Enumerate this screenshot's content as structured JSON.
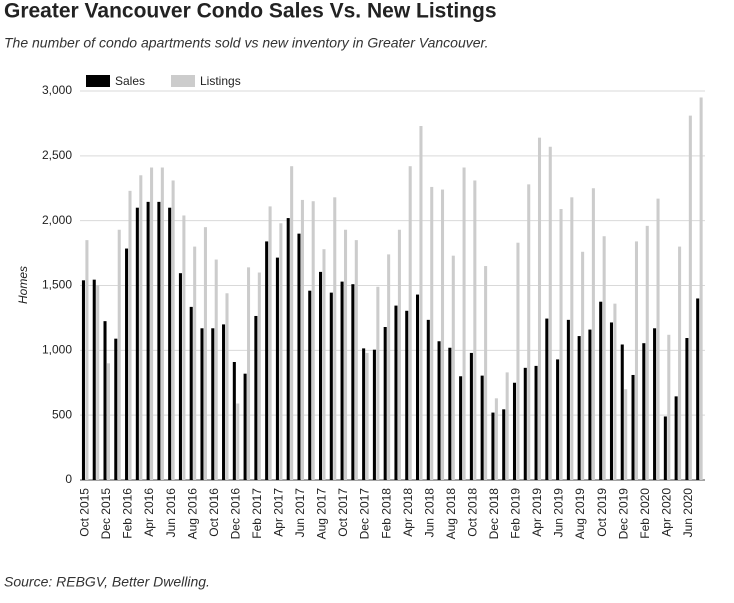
{
  "chart_data": {
    "type": "bar",
    "title": "Greater Vancouver Condo Sales Vs. New Listings",
    "subtitle": "The number of condo apartments sold vs new inventory in Greater Vancouver.",
    "source": "Source: REBGV, Better Dwelling.",
    "y_label": "Homes",
    "categories": [
      "Oct 2015",
      null,
      "Dec 2015",
      null,
      "Feb 2016",
      null,
      "Apr 2016",
      null,
      "Jun 2016",
      null,
      "Aug 2016",
      null,
      "Oct 2016",
      null,
      "Dec 2016",
      null,
      "Feb 2017",
      null,
      "Apr 2017",
      null,
      "Jun 2017",
      null,
      "Aug 2017",
      null,
      "Oct 2017",
      null,
      "Dec 2017",
      null,
      "Feb 2018",
      null,
      "Apr 2018",
      null,
      "Jun 2018",
      null,
      "Aug 2018",
      null,
      "Oct 2018",
      null,
      "Dec 2018",
      null,
      "Feb 2019",
      null,
      "Apr 2019",
      null,
      "Jun 2019",
      null,
      "Aug 2019",
      null,
      "Oct 2019",
      null,
      "Dec 2019",
      null,
      "Feb 2020",
      null,
      "Apr 2020",
      null,
      "Jun 2020",
      null
    ],
    "series": [
      {
        "name": "Sales",
        "color": "#000000",
        "values": [
          1540,
          1545,
          1225,
          1090,
          1785,
          2100,
          2145,
          2145,
          2100,
          1595,
          1335,
          1170,
          1170,
          1200,
          910,
          820,
          1265,
          1840,
          1715,
          2020,
          1900,
          1460,
          1605,
          1445,
          1530,
          1510,
          1015,
          1005,
          1180,
          1345,
          1305,
          1430,
          1235,
          1070,
          1020,
          800,
          980,
          805,
          520,
          545,
          750,
          865,
          880,
          1245,
          930,
          1235,
          1110,
          1160,
          1375,
          1215,
          1045,
          810,
          1055,
          1170,
          490,
          645,
          1095,
          1400
        ]
      },
      {
        "name": "Listings",
        "color": "#cccccc",
        "values": [
          1850,
          1500,
          900,
          1930,
          2230,
          2350,
          2410,
          2410,
          2310,
          2040,
          1800,
          1950,
          1700,
          1440,
          590,
          1640,
          1600,
          2110,
          1980,
          2420,
          2160,
          2150,
          1780,
          2180,
          1930,
          1850,
          980,
          1490,
          1740,
          1930,
          2420,
          2730,
          2260,
          2240,
          1730,
          2410,
          2310,
          1650,
          630,
          830,
          1830,
          2280,
          2640,
          2570,
          2090,
          2180,
          1760,
          2250,
          1880,
          1360,
          700,
          1840,
          1960,
          2170,
          1120,
          1800,
          2810,
          2950
        ]
      }
    ],
    "ylim": [
      0,
      3000
    ],
    "yticks": [
      0,
      {
        "value": 500,
        "label": "500"
      },
      {
        "value": 1000,
        "label": "1,000"
      },
      {
        "value": 1500,
        "label": "1,500"
      },
      {
        "value": 2000,
        "label": "2,000"
      },
      {
        "value": 2500,
        "label": "2,500"
      },
      {
        "value": 3000,
        "label": "3,000"
      }
    ],
    "grid": true,
    "legend": "top-left"
  }
}
